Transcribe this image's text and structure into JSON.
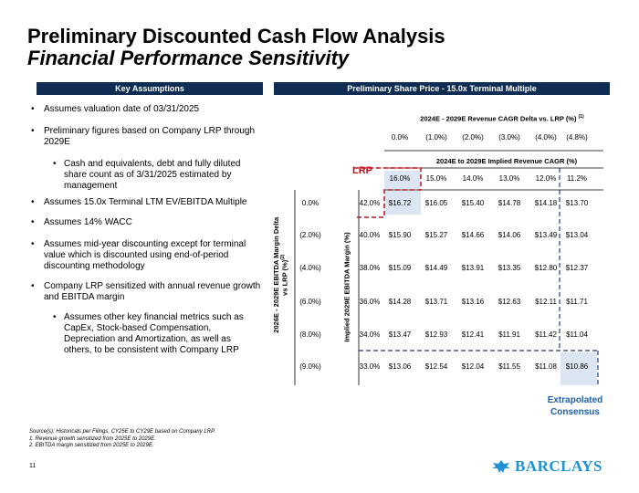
{
  "title": "Preliminary Discounted Cash Flow Analysis",
  "subtitle": "Financial Performance Sensitivity",
  "left_header": "Key Assumptions",
  "right_header": "Preliminary Share Price - 15.0x Terminal Multiple",
  "assumptions": [
    {
      "text": "Assumes valuation date of 03/31/2025",
      "level": 1
    },
    {
      "text": "Preliminary figures based on Company LRP through 2029E",
      "level": 1
    },
    {
      "text": "Cash and equivalents, debt and fully diluted share count as of 3/31/2025 estimated by management",
      "level": 2
    },
    {
      "text": "Assumes 15.0x Terminal LTM EV/EBITDA Multiple",
      "level": 1
    },
    {
      "text": "Assumes 14% WACC",
      "level": 1
    },
    {
      "text": "Assumes mid-year discounting except for terminal value which is discounted using end-of-period discounting methodology",
      "level": 1
    },
    {
      "text": "Company LRP sensitized with annual revenue growth and EBITDA margin",
      "level": 1
    },
    {
      "text": "Assumes other key financial metrics such as CapEx, Stock-based Compensation, Depreciation and Amortization, as well as others, to be consistent with Company LRP",
      "level": 2
    }
  ],
  "table": {
    "cagr_header": "2024E - 2029E Revenue CAGR Delta vs. LRP (%)",
    "cagr_header_sup": "(1)",
    "cagr_deltas": [
      "0.0%",
      "(1.0%)",
      "(2.0%)",
      "(3.0%)",
      "(4.0%)",
      "(4.8%)"
    ],
    "implied_header": "2024E to 2029E Implied Revenue CAGR (%)",
    "implied_cagr": [
      "16.0%",
      "15.0%",
      "14.0%",
      "13.0%",
      "12.0%",
      "11.2%"
    ],
    "row_axis_label_1": "2026E - 2029E EBITDA Margin Delta",
    "row_axis_label_2": "vs LRP (%)",
    "row_axis_sup": "(2)",
    "implied_margin_label": "Implied 2029E EBITDA Margin (%)",
    "margin_deltas": [
      "0.0%",
      "(2.0%)",
      "(4.0%)",
      "(6.0%)",
      "(8.0%)",
      "(9.0%)"
    ],
    "implied_margins": [
      "42.0%",
      "40.0%",
      "38.0%",
      "36.0%",
      "34.0%",
      "33.0%"
    ],
    "prices": [
      [
        "$16.72",
        "$16.05",
        "$15.40",
        "$14.78",
        "$14.18",
        "$13.70"
      ],
      [
        "$15.90",
        "$15.27",
        "$14.66",
        "$14.06",
        "$13.49",
        "$13.04"
      ],
      [
        "$15.09",
        "$14.49",
        "$13.91",
        "$13.35",
        "$12.80",
        "$12.37"
      ],
      [
        "$14.28",
        "$13.71",
        "$13.16",
        "$12.63",
        "$12.11",
        "$11.71"
      ],
      [
        "$13.47",
        "$12.93",
        "$12.41",
        "$11.91",
        "$11.42",
        "$11.04"
      ],
      [
        "$13.06",
        "$12.54",
        "$12.04",
        "$11.55",
        "$11.08",
        "$10.86"
      ]
    ]
  },
  "lrp_label": "LRP",
  "extrapolated_line1": "Extrapolated",
  "extrapolated_line2": "Consensus",
  "footnotes": [
    "Source(s): Historicals per Filings, CY25E to CY29E based on Company LRP.",
    "1.      Revenue growth sensitized from 2025E to 2029E.",
    "2.      EBITDA margin sensitized from 2025E to 2029E."
  ],
  "page_number": "11",
  "logo_text": "BARCLAYS",
  "colors": {
    "navy": "#0f2d52",
    "red": "#c0121e",
    "blue": "#1f5fa8",
    "highlight": "#dbe6f2",
    "logo": "#1f93d3"
  }
}
